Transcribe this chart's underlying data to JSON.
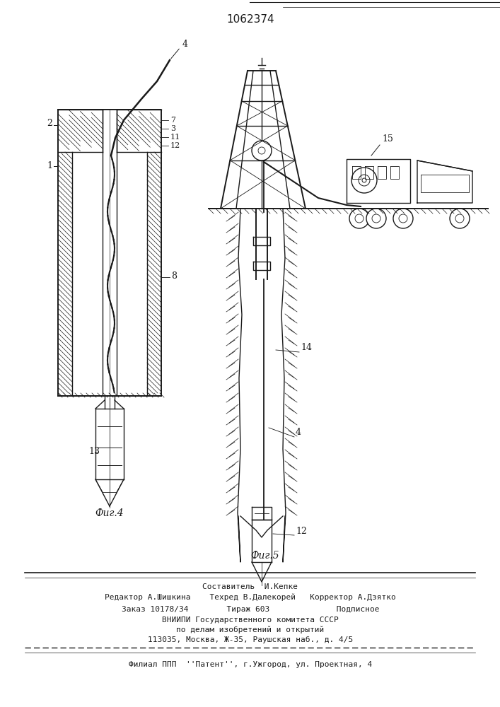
{
  "title": "1062374",
  "fig_width": 7.07,
  "fig_height": 10.0,
  "bg_color": "#ffffff",
  "line_color": "#1a1a1a",
  "fig4_caption": "Фиг.4",
  "fig5_caption": "Фиг.5"
}
